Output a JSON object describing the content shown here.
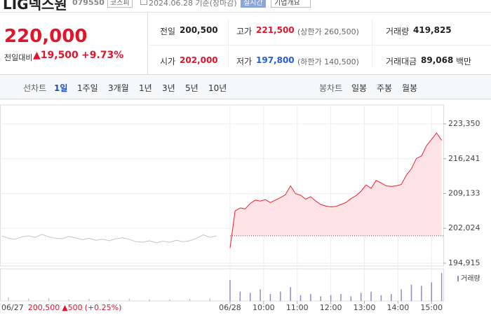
{
  "header": {
    "name": "LIG넥스원",
    "code": "079550",
    "market": "코스피",
    "date": "2024.06.28 기준(장마감)",
    "realtime": "실시간",
    "overview": "기업개요"
  },
  "price": {
    "current": "220,000",
    "change_label": "전일대비",
    "change": "▲19,500",
    "rate": "+9.73%"
  },
  "stats": [
    [
      {
        "label": "전일",
        "value": "200,500"
      },
      {
        "label": "고가",
        "value": "221,500",
        "note": "(상한가 260,500)"
      },
      {
        "label": "거래량",
        "value": "419,825"
      }
    ],
    [
      {
        "label": "시가",
        "value": "202,000"
      },
      {
        "label": "저가",
        "value": "197,800",
        "note": "(하한가 140,500)"
      },
      {
        "label": "거래대금",
        "value": "89,068",
        "unit": "백만"
      }
    ]
  ],
  "tabs": {
    "line": {
      "label": "선차트",
      "items": [
        "1일",
        "1주일",
        "3개월",
        "1년",
        "3년",
        "5년",
        "10년"
      ]
    },
    "candle": {
      "label": "봉차트",
      "items": [
        "일봉",
        "주봉",
        "월봉"
      ]
    }
  },
  "footer": {
    "date": "06/27",
    "price": "200,500",
    "change": "▲500",
    "rate": "(+0.25%)"
  },
  "chart_data": {
    "type": "line",
    "xlim": [
      -6.85,
      6.35
    ],
    "ylim": [
      194343,
      227208
    ],
    "yticks": [
      {
        "value": 223350,
        "label": "223,350"
      },
      {
        "value": 216241,
        "label": "216,241"
      },
      {
        "value": 209133,
        "label": "209,133"
      },
      {
        "value": 202024,
        "label": "202,024"
      },
      {
        "value": 194915,
        "label": "194,915"
      }
    ],
    "xticks": [
      {
        "value": 0,
        "label": "06/28"
      },
      {
        "value": 1,
        "label": "10:00"
      },
      {
        "value": 2,
        "label": "11:00"
      },
      {
        "value": 3,
        "label": "12:00"
      },
      {
        "value": 4,
        "label": "13:00"
      },
      {
        "value": 5,
        "label": "14:00"
      },
      {
        "value": 6,
        "label": "15:00"
      }
    ],
    "grid": true,
    "baseline": 200500,
    "series": [
      {
        "color": "#c4c4c4",
        "x": [
          -6.8,
          -6.6,
          -6.4,
          -6.2,
          -6.0,
          -5.8,
          -5.6,
          -5.4,
          -5.2,
          -5.0,
          -4.8,
          -4.6,
          -4.4,
          -4.2,
          -4.0,
          -3.8,
          -3.6,
          -3.4,
          -3.2,
          -3.0,
          -2.8,
          -2.6,
          -2.4,
          -2.2,
          -2.0,
          -1.8,
          -1.6,
          -1.4,
          -1.2,
          -1.0,
          -0.8,
          -0.6,
          -0.4
        ],
        "values": [
          200500,
          200000,
          199800,
          200300,
          200500,
          200200,
          200800,
          200300,
          200000,
          199900,
          200400,
          200100,
          199700,
          200000,
          199600,
          199800,
          199500,
          199900,
          200100,
          199800,
          199300,
          199200,
          199500,
          199100,
          199400,
          199200,
          199600,
          199300,
          199500,
          200000,
          200700,
          200200,
          200500
        ]
      },
      {
        "color": "#e8212f",
        "area_color": "#fde3e5",
        "x": [
          0,
          0.15,
          0.3,
          0.45,
          0.6,
          0.75,
          0.9,
          1.05,
          1.2,
          1.35,
          1.5,
          1.65,
          1.8,
          1.95,
          2.1,
          2.25,
          2.4,
          2.55,
          2.7,
          2.85,
          3.0,
          3.15,
          3.3,
          3.45,
          3.6,
          3.75,
          3.9,
          4.05,
          4.2,
          4.35,
          4.5,
          4.65,
          4.8,
          4.95,
          5.1,
          5.25,
          5.4,
          5.55,
          5.7,
          5.85,
          6.0,
          6.15,
          6.3
        ],
        "values": [
          198000,
          205600,
          206200,
          206000,
          207100,
          207800,
          207600,
          207900,
          207300,
          207800,
          208300,
          208900,
          210700,
          209100,
          208800,
          208000,
          208500,
          207600,
          206900,
          206600,
          206400,
          206500,
          206900,
          207300,
          208100,
          208700,
          209600,
          210900,
          210200,
          211800,
          211300,
          210700,
          210600,
          210700,
          211000,
          212900,
          214200,
          216300,
          216800,
          218900,
          220200,
          221500,
          220000
        ]
      }
    ],
    "volume": [
      {
        "color": "#c8c8c8",
        "x": [
          -6.6,
          -6.0,
          -5.4,
          -4.8,
          -4.2,
          -3.6,
          -3.0,
          -2.4,
          -1.8,
          -1.2,
          -0.6
        ],
        "values": [
          1500,
          1000,
          1200,
          800,
          900,
          700,
          1000,
          800,
          600,
          900,
          1100
        ]
      },
      {
        "name": "거래량",
        "color": "#9b86c9",
        "x": [
          0,
          0.3,
          0.6,
          0.9,
          1.2,
          1.5,
          1.8,
          2.1,
          2.4,
          2.7,
          3.0,
          3.3,
          3.6,
          3.9,
          4.2,
          4.5,
          4.8,
          5.1,
          5.4,
          5.7,
          6.0,
          6.3
        ],
        "values": [
          9000,
          4000,
          3500,
          5000,
          3000,
          4000,
          6000,
          2500,
          3000,
          2000,
          2500,
          3000,
          2000,
          3500,
          4000,
          2500,
          3000,
          5000,
          7000,
          6500,
          8000,
          12000
        ]
      }
    ]
  }
}
